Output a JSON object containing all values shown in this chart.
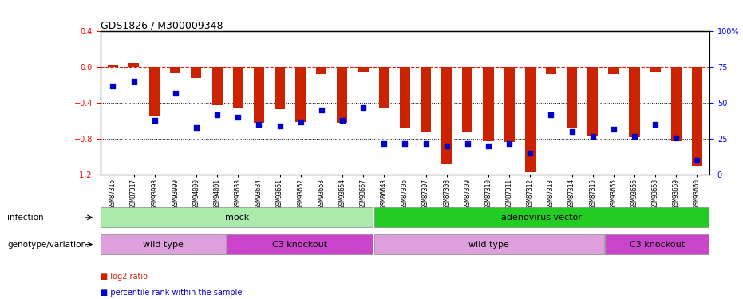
{
  "title": "GDS1826 / M300009348",
  "samples": [
    "GSM87316",
    "GSM87317",
    "GSM93998",
    "GSM93999",
    "GSM94000",
    "GSM94001",
    "GSM93633",
    "GSM93634",
    "GSM93651",
    "GSM93652",
    "GSM93653",
    "GSM93654",
    "GSM93657",
    "GSM86643",
    "GSM87306",
    "GSM87307",
    "GSM87308",
    "GSM87309",
    "GSM87310",
    "GSM87311",
    "GSM87312",
    "GSM87313",
    "GSM87314",
    "GSM87315",
    "GSM93655",
    "GSM93656",
    "GSM93658",
    "GSM93659",
    "GSM93660"
  ],
  "log2_ratio": [
    0.03,
    0.05,
    -0.55,
    -0.07,
    -0.12,
    -0.42,
    -0.45,
    -0.62,
    -0.47,
    -0.61,
    -0.08,
    -0.62,
    -0.05,
    -0.45,
    -0.68,
    -0.72,
    -1.08,
    -0.72,
    -0.82,
    -0.83,
    -1.17,
    -0.08,
    -0.68,
    -0.77,
    -0.08,
    -0.78,
    -0.05,
    -0.82,
    -1.1
  ],
  "percentile_rank": [
    62,
    65,
    38,
    57,
    33,
    42,
    40,
    35,
    34,
    37,
    45,
    38,
    47,
    22,
    22,
    22,
    20,
    22,
    20,
    22,
    15,
    42,
    30,
    27,
    32,
    27,
    35,
    26,
    10
  ],
  "infection_groups": [
    {
      "label": "mock",
      "start": 0,
      "end": 13,
      "color": "#aaeaaa"
    },
    {
      "label": "adenovirus vector",
      "start": 13,
      "end": 29,
      "color": "#22cc22"
    }
  ],
  "genotype_groups": [
    {
      "label": "wild type",
      "start": 0,
      "end": 6,
      "color": "#dda0dd"
    },
    {
      "label": "C3 knockout",
      "start": 6,
      "end": 13,
      "color": "#cc44cc"
    },
    {
      "label": "wild type",
      "start": 13,
      "end": 24,
      "color": "#dda0dd"
    },
    {
      "label": "C3 knockout",
      "start": 24,
      "end": 29,
      "color": "#cc44cc"
    }
  ],
  "bar_color": "#cc2200",
  "dot_color": "#0000cc",
  "ylim_left": [
    -1.2,
    0.4
  ],
  "ylim_right": [
    0,
    100
  ],
  "yticks_left": [
    0.4,
    0.0,
    -0.4,
    -0.8,
    -1.2
  ],
  "yticks_right": [
    0,
    25,
    50,
    75,
    100
  ],
  "dotted_lines": [
    -0.4,
    -0.8
  ],
  "legend_red": "log2 ratio",
  "legend_blue": "percentile rank within the sample",
  "infection_label": "infection",
  "genotype_label": "genotype/variation",
  "background_color": "#ffffff"
}
